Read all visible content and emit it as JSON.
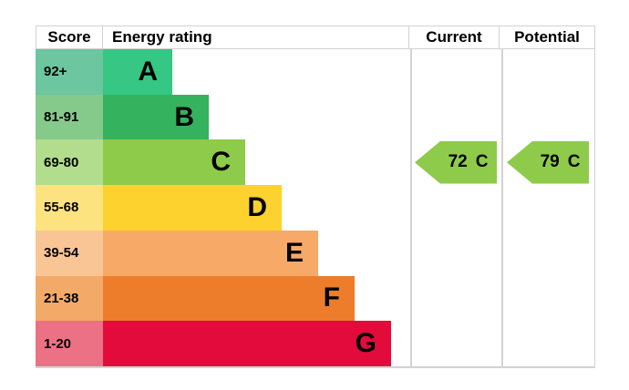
{
  "header": {
    "score": "Score",
    "energy_rating": "Energy rating",
    "current": "Current",
    "potential": "Potential"
  },
  "chart_data": {
    "type": "bar",
    "title": "Energy rating",
    "description": "EPC energy efficiency rating chart with bands A-G",
    "categories": [
      "A",
      "B",
      "C",
      "D",
      "E",
      "F",
      "G"
    ],
    "score_ranges": [
      "92+",
      "81-91",
      "69-80",
      "55-68",
      "39-54",
      "21-38",
      "1-20"
    ],
    "bands": [
      {
        "letter": "A",
        "score_range": "92+",
        "color": "#35c783",
        "score_cell_color": "#6cc6a0"
      },
      {
        "letter": "B",
        "score_range": "81-91",
        "color": "#34b25e",
        "score_cell_color": "#85ca8b"
      },
      {
        "letter": "C",
        "score_range": "69-80",
        "color": "#8ecb4a",
        "score_cell_color": "#b2dd8d"
      },
      {
        "letter": "D",
        "score_range": "55-68",
        "color": "#fdd22e",
        "score_cell_color": "#fde380"
      },
      {
        "letter": "E",
        "score_range": "39-54",
        "color": "#f7a968",
        "score_cell_color": "#fac594"
      },
      {
        "letter": "F",
        "score_range": "21-38",
        "color": "#ed7d2b",
        "score_cell_color": "#f3aa69"
      },
      {
        "letter": "G",
        "score_range": "1-20",
        "color": "#e30b3c",
        "score_cell_color": "#ec7184"
      }
    ],
    "current": {
      "label": "Current",
      "value": 72,
      "band": "C",
      "color": "#8ecb4a"
    },
    "potential": {
      "label": "Potential",
      "value": 79,
      "band": "C",
      "color": "#8ecb4a"
    }
  }
}
